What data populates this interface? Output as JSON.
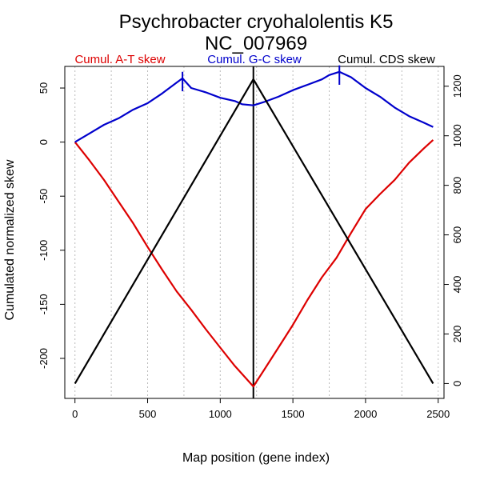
{
  "chart_data": {
    "type": "line",
    "title": "Psychrobacter cryohalolentis K5",
    "subtitle": "NC_007969",
    "xlabel": "Map position (gene index)",
    "ylabel": "Cumulated normalized skew",
    "xlim": [
      -70,
      2540
    ],
    "ylim": [
      -237,
      70
    ],
    "y2lim": [
      -60,
      1280
    ],
    "x_ticks": [
      0,
      500,
      1000,
      1500,
      2000,
      2500
    ],
    "y_ticks": [
      -200,
      -150,
      -100,
      -50,
      0,
      50
    ],
    "y2_ticks": [
      0,
      200,
      400,
      600,
      800,
      1000,
      1200
    ],
    "vertical_gridlines": [
      0,
      250,
      500,
      750,
      1000,
      1250,
      1500,
      1750,
      2000,
      2250,
      2500
    ],
    "grid": "vertical dotted",
    "legend_placement": "top",
    "origin_marker_x": 1228,
    "series": [
      {
        "name": "Cumul. A-T skew",
        "color": "#dd0000",
        "axis": "left",
        "x": [
          0,
          100,
          200,
          300,
          400,
          500,
          600,
          700,
          800,
          900,
          1000,
          1100,
          1228,
          1300,
          1400,
          1500,
          1600,
          1700,
          1800,
          1900,
          2000,
          2100,
          2200,
          2300,
          2400,
          2465
        ],
        "values": [
          0,
          -17,
          -35,
          -55,
          -75,
          -97,
          -118,
          -138,
          -155,
          -173,
          -190,
          -207,
          -226,
          -211,
          -190,
          -169,
          -146,
          -125,
          -107,
          -84,
          -62,
          -48,
          -35,
          -19,
          -6,
          2
        ]
      },
      {
        "name": "Cumul. G-C skew",
        "color": "#0000cc",
        "axis": "left",
        "x": [
          0,
          100,
          200,
          300,
          400,
          500,
          600,
          700,
          740,
          800,
          900,
          1000,
          1100,
          1150,
          1228,
          1300,
          1400,
          1500,
          1600,
          1700,
          1750,
          1820,
          1900,
          2000,
          2100,
          2200,
          2300,
          2400,
          2465
        ],
        "values": [
          0,
          8,
          16,
          22,
          30,
          36,
          45,
          55,
          59,
          50,
          46,
          41,
          38,
          35,
          34,
          37,
          42,
          48,
          53,
          58,
          62,
          65,
          60,
          50,
          42,
          32,
          24,
          18,
          14
        ]
      },
      {
        "name": "Cumul. CDS skew",
        "color": "#000000",
        "axis": "right",
        "x": [
          0,
          1228,
          2465
        ],
        "values": [
          0,
          1228,
          0
        ]
      }
    ],
    "markers": [
      {
        "series": "Cumul. G-C skew",
        "x": 740,
        "y": 56,
        "half_height": 9,
        "color": "#0000cc"
      },
      {
        "series": "Cumul. G-C skew",
        "x": 1820,
        "y": 62,
        "half_height": 9,
        "color": "#0000cc"
      }
    ]
  }
}
